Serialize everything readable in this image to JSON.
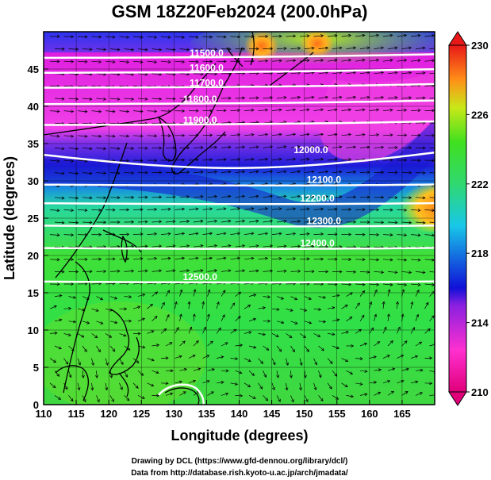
{
  "title": "GSM 18Z20Feb2024 (200.0hPa)",
  "xlabel": "Longitude (degrees)",
  "ylabel": "Latitude  (degrees)",
  "x_ticks": [
    "110",
    "115",
    "120",
    "125",
    "130",
    "135",
    "140",
    "145",
    "150",
    "155",
    "160",
    "165"
  ],
  "y_ticks": [
    "0",
    "5",
    "10",
    "15",
    "20",
    "25",
    "30",
    "35",
    "40",
    "45"
  ],
  "colorbar": {
    "ticks": [
      "230",
      "226",
      "222",
      "218",
      "214",
      "210"
    ],
    "range": [
      210,
      230
    ],
    "colors": [
      "#e0007a",
      "#ff30d0",
      "#1010d8",
      "#18c8e8",
      "#30e030",
      "#c8e818",
      "#ff9018",
      "#e81818"
    ]
  },
  "contour_labels": [
    "11500.0",
    "11600.0",
    "11700.0",
    "11800.0",
    "11900.0",
    "12000.0",
    "12100.0",
    "12200.0",
    "12300.0",
    "12400.0",
    "12500.0"
  ],
  "credits": {
    "line1": "Drawing by DCL (https://www.gfd-dennou.org/library/dcl/)",
    "line2": "Data from http://database.rish.kyoto-u.ac.jp/arch/jmadata/"
  },
  "chart_data": {
    "type": "heatmap",
    "title": "GSM 18Z20Feb2024 (200.0hPa)",
    "xlabel": "Longitude (degrees)",
    "ylabel": "Latitude  (degrees)",
    "xlim": [
      110,
      170
    ],
    "ylim": [
      0,
      50
    ],
    "color_range": [
      210,
      230
    ],
    "grid": true,
    "legend": "colorbar right",
    "contours": [
      {
        "value": 11500.0,
        "lat": 46.5
      },
      {
        "value": 11600.0,
        "lat": 44.5
      },
      {
        "value": 11700.0,
        "lat": 42.5
      },
      {
        "value": 11800.0,
        "lat": 40.3
      },
      {
        "value": 11900.0,
        "lat": 37.5
      },
      {
        "value": 12000.0,
        "lat": 33.5
      },
      {
        "value": 12100.0,
        "lat": 29.5
      },
      {
        "value": 12200.0,
        "lat": 27.0
      },
      {
        "value": 12300.0,
        "lat": 24.0
      },
      {
        "value": 12400.0,
        "lat": 21.0
      },
      {
        "value": 12500.0,
        "lat": 16.5
      }
    ]
  }
}
